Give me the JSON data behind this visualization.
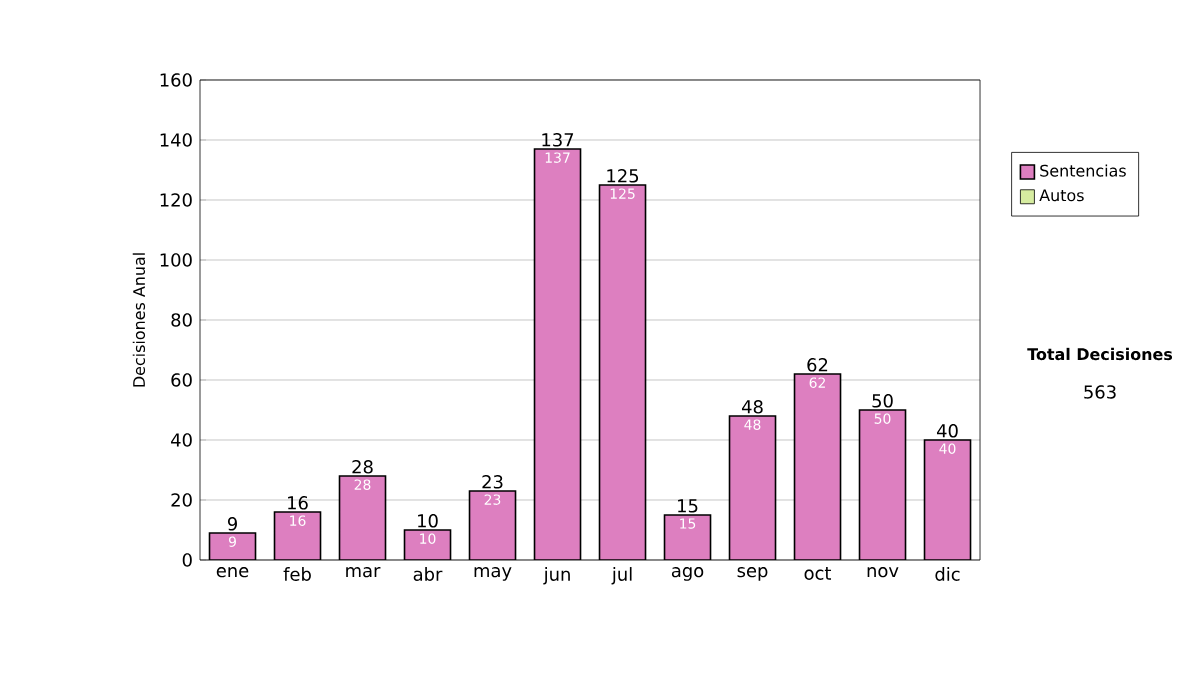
{
  "chart_data": {
    "type": "bar",
    "stacked": true,
    "ylabel": "Decisiones Anual",
    "categories": [
      "ene",
      "feb",
      "mar",
      "abr",
      "may",
      "jun",
      "jul",
      "ago",
      "sep",
      "oct",
      "nov",
      "dic"
    ],
    "series": [
      {
        "name": "Sentencias",
        "color": "#dd7fc0",
        "values": [
          9,
          16,
          28,
          10,
          23,
          137,
          125,
          15,
          48,
          62,
          50,
          40
        ]
      },
      {
        "name": "Autos",
        "color": "#d6eca0",
        "values": [
          null,
          null,
          null,
          null,
          null,
          null,
          null,
          null,
          null,
          null,
          null,
          null
        ]
      }
    ],
    "data_labels": true,
    "totals": [
      "9",
      "16",
      "28",
      "10",
      "23",
      "137",
      "125",
      "15",
      "48",
      "62",
      "50",
      "40"
    ],
    "ylim": [
      0,
      160
    ],
    "yticks": [
      0,
      20,
      40,
      60,
      80,
      100,
      120,
      140,
      160
    ],
    "grid": "y",
    "legend": "right",
    "annotations": [
      "Total Decisiones",
      "563"
    ]
  }
}
